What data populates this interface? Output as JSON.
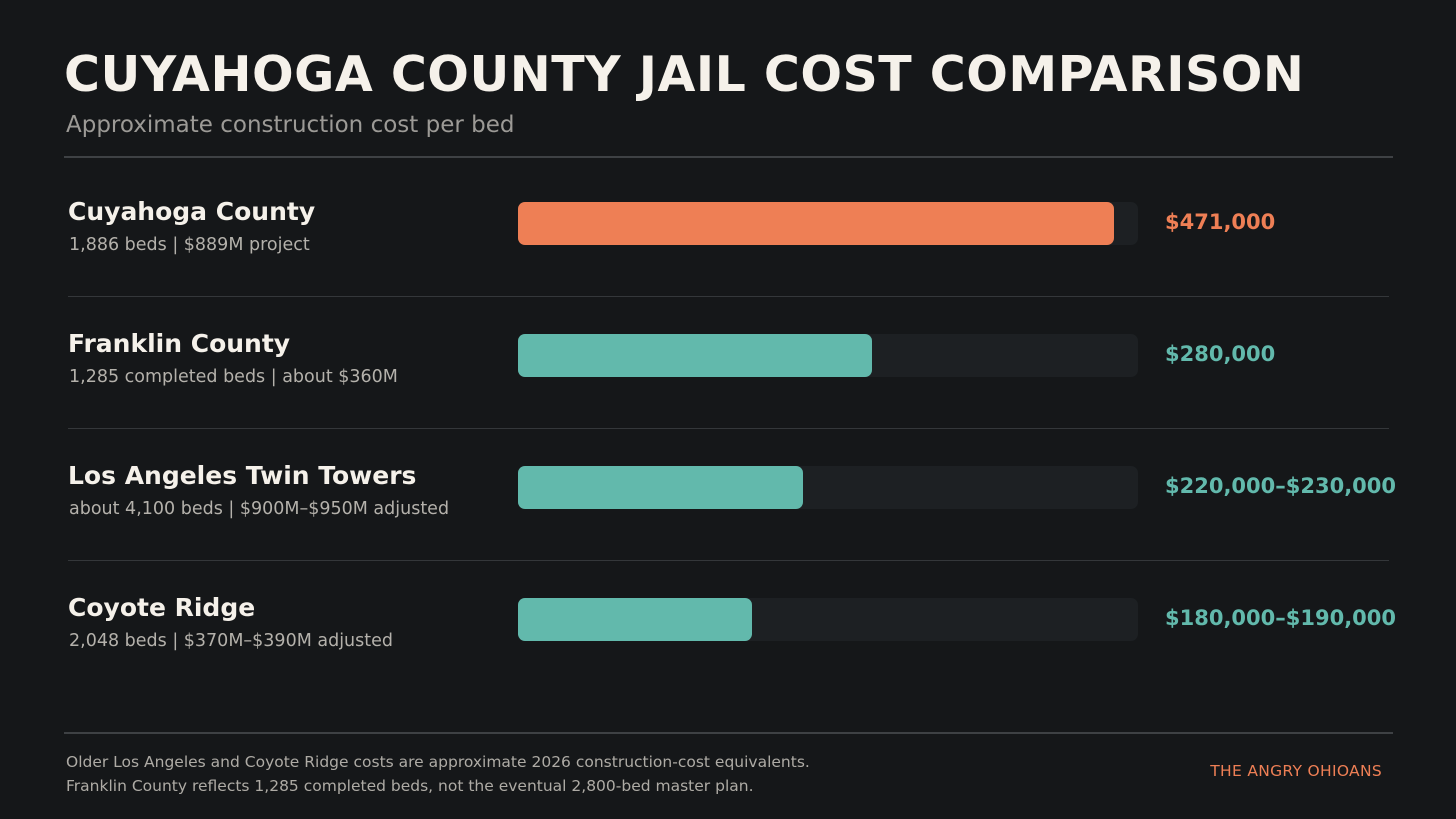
{
  "title": "CUYAHOGA COUNTY JAIL COST COMPARISON",
  "subtitle": "Approximate construction cost per bed",
  "colors": {
    "background": "#151719",
    "highlight": "#ee7f55",
    "comparison": "#62b9ac",
    "track": "#1d2023"
  },
  "chart_data": {
    "type": "bar",
    "orientation": "horizontal",
    "xlim": [
      0,
      490000
    ],
    "categories": [
      "Cuyahoga County",
      "Franklin County",
      "Los Angeles Twin Towers",
      "Coyote Ridge"
    ],
    "values": [
      471000,
      280000,
      225000,
      185000
    ],
    "value_labels": [
      "$471,000",
      "$280,000",
      "$220,000–$230,000",
      "$180,000–$190,000"
    ],
    "details": [
      "1,886 beds  |  $889M project",
      "1,285 completed beds  |  about $360M",
      "about 4,100 beds  |  $900M–$950M adjusted",
      "2,048 beds  |  $370M–$390M adjusted"
    ],
    "highlight": "Cuyahoga County"
  },
  "footer": {
    "note_line_1": "Older Los Angeles and Coyote Ridge costs are approximate 2026 construction-cost equivalents.",
    "note_line_2": "Franklin County reflects 1,285 completed beds, not the eventual 2,800-bed master plan.",
    "brand": "THE ANGRY OHIOANS"
  }
}
